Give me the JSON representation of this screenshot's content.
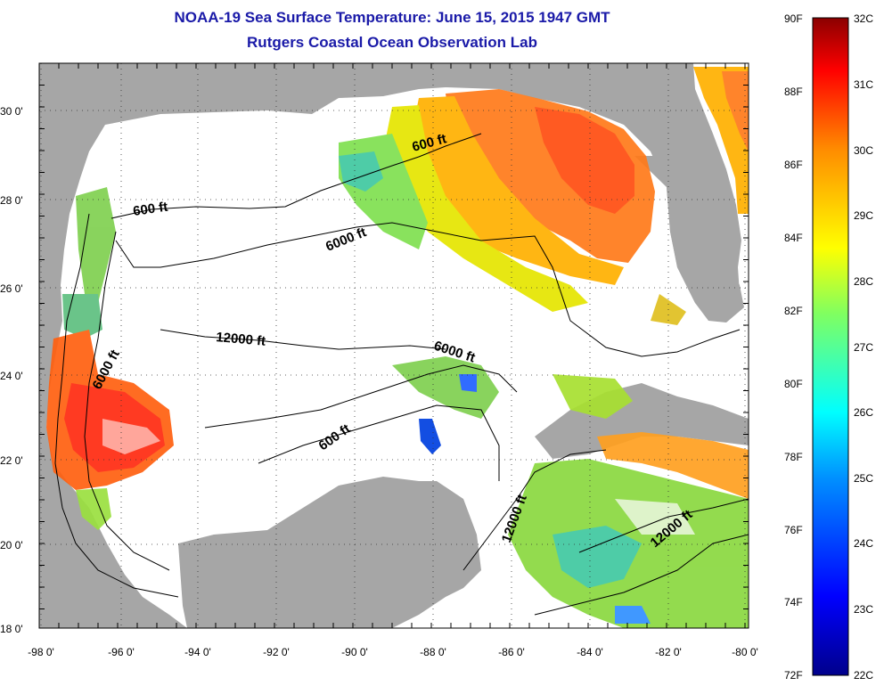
{
  "header": {
    "title": "NOAA-19 Sea Surface Temperature:  June 15, 2015 1947 GMT",
    "subtitle": "Rutgers Coastal Ocean Observation Lab"
  },
  "axes": {
    "lat_labels": [
      "30 0'",
      "28 0'",
      "26 0'",
      "24 0'",
      "22 0'",
      "20 0'",
      "18 0'"
    ],
    "lon_labels": [
      "-98 0'",
      "-96 0'",
      "-94 0'",
      "-92 0'",
      "-90 0'",
      "-88 0'",
      "-86 0'",
      "-84 0'",
      "-82 0'",
      "-80 0'"
    ]
  },
  "contours": {
    "labels": [
      "600 ft",
      "600 ft",
      "6000 ft",
      "12000 ft",
      "6000 ft",
      "6000 ft",
      "600 ft",
      "12000 ft",
      "12000 ft"
    ]
  },
  "colorbar": {
    "f_labels": [
      "90F",
      "88F",
      "86F",
      "84F",
      "82F",
      "80F",
      "78F",
      "76F",
      "74F",
      "72F"
    ],
    "c_labels": [
      "32C",
      "31C",
      "30C",
      "29C",
      "28C",
      "27C",
      "26C",
      "25C",
      "24C",
      "23C",
      "22C"
    ]
  },
  "colors": {
    "title": "#1a1aa8",
    "land": "#a6a6a6",
    "ocean_nodata": "#ffffff"
  }
}
